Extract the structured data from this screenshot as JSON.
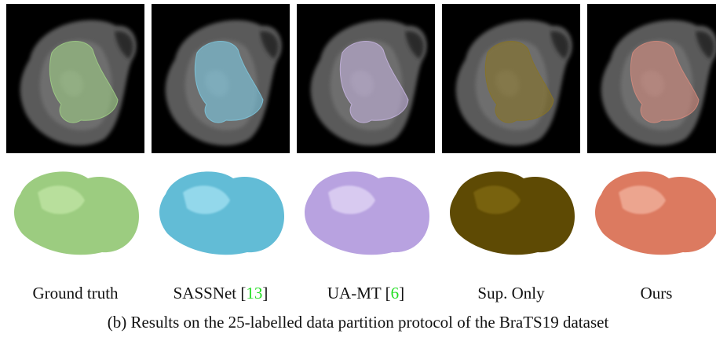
{
  "panels": [
    {
      "label": [
        "Ground truth"
      ]
    },
    {
      "label": [
        "SASSNet [",
        "13",
        "]"
      ]
    },
    {
      "label": [
        "UA-MT [",
        "6",
        "]"
      ]
    },
    {
      "label": [
        "Sup. Only"
      ]
    },
    {
      "label": [
        "Ours"
      ]
    }
  ],
  "caption": "(b) Results on the 25-labelled data partition protocol of the BraTS19 dataset"
}
